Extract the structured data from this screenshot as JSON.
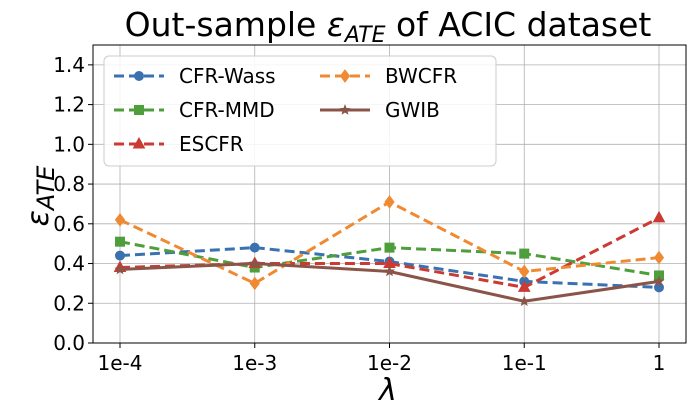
{
  "chart_data": {
    "type": "line",
    "title": {
      "prefix": "Out-sample ",
      "symbol": "ε",
      "subscript": "ATE",
      "suffix": " of ACIC dataset"
    },
    "xlabel": "λ",
    "ylabel": {
      "symbol": "ε",
      "subscript": "ATE"
    },
    "categories": [
      "1e-4",
      "1e-3",
      "1e-2",
      "1e-1",
      "1"
    ],
    "ylim": [
      0,
      1.5
    ],
    "yticks": [
      0.0,
      0.2,
      0.4,
      0.6,
      0.8,
      1.0,
      1.2,
      1.4
    ],
    "ytick_labels": [
      "0.0",
      "0.2",
      "0.4",
      "0.6",
      "0.8",
      "1.0",
      "1.2",
      "1.4"
    ],
    "grid": true,
    "legend": "top-left",
    "series": [
      {
        "name": "CFR-Wass",
        "color": "#3a72b0",
        "marker": "circle",
        "dashed": true,
        "values": [
          0.44,
          0.48,
          0.41,
          0.31,
          0.28
        ]
      },
      {
        "name": "CFR-MMD",
        "color": "#4e9e3c",
        "marker": "square",
        "dashed": true,
        "values": [
          0.51,
          0.38,
          0.48,
          0.45,
          0.34
        ]
      },
      {
        "name": "ESCFR",
        "color": "#cb3b33",
        "marker": "triangle",
        "dashed": true,
        "values": [
          0.38,
          0.4,
          0.4,
          0.28,
          0.63
        ]
      },
      {
        "name": "BWCFR",
        "color": "#f08a32",
        "marker": "diamond",
        "dashed": true,
        "values": [
          0.62,
          0.3,
          0.71,
          0.36,
          0.43
        ]
      },
      {
        "name": "GWIB",
        "color": "#8a5548",
        "marker": "star",
        "dashed": false,
        "values": [
          0.37,
          0.4,
          0.36,
          0.21,
          0.31
        ]
      }
    ]
  }
}
